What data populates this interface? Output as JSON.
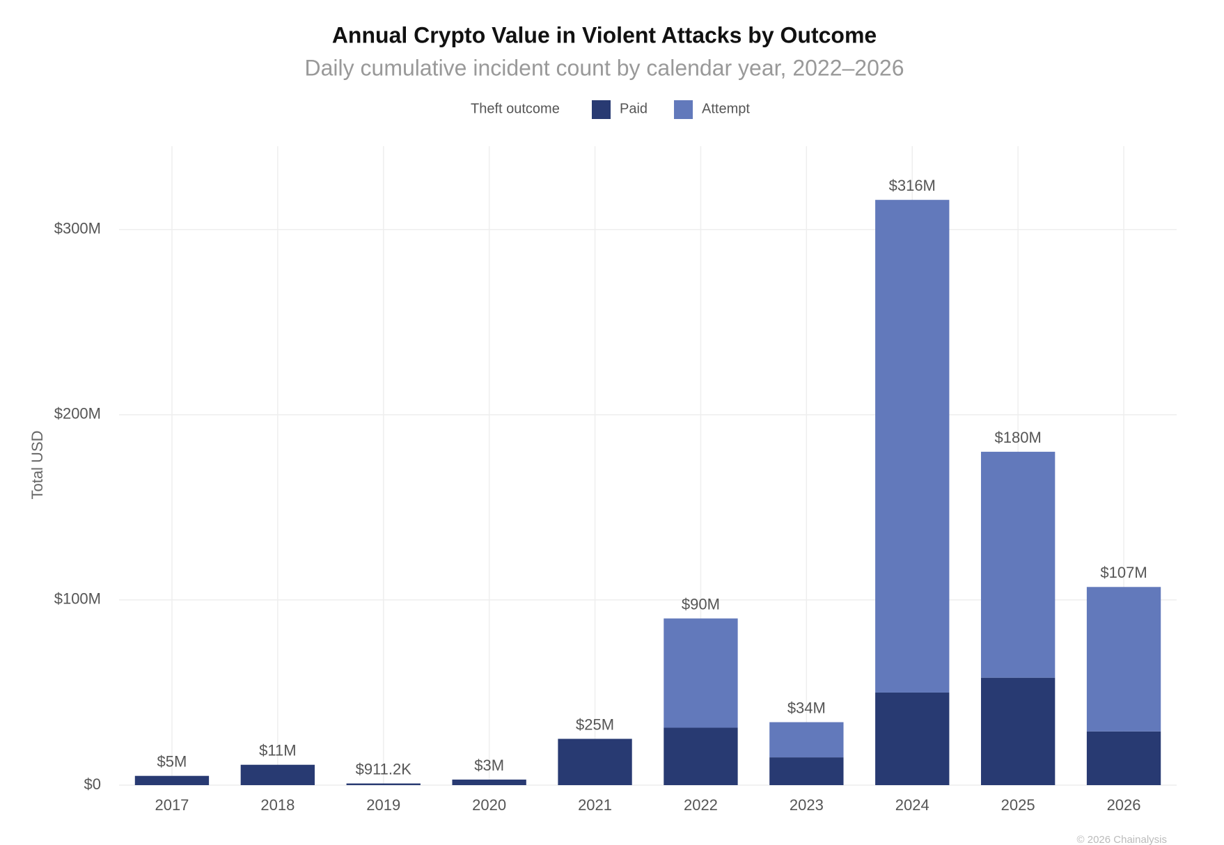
{
  "chart_data": {
    "type": "stacked-bar",
    "title": "Annual Crypto Value in Violent Attacks by Outcome",
    "subtitle": "Daily cumulative incident count by calendar year, 2022–2026",
    "y_label": "Total USD",
    "legend_title": "Theft outcome",
    "legend_position": "top",
    "grid": true,
    "categories": [
      "2017",
      "2018",
      "2019",
      "2020",
      "2021",
      "2022",
      "2023",
      "2024",
      "2025",
      "2026"
    ],
    "series": [
      {
        "name": "Paid",
        "color": "#283a72",
        "values": [
          5,
          11,
          0.9112,
          3,
          25,
          31,
          15,
          50,
          58,
          29
        ]
      },
      {
        "name": "Attempt",
        "color": "#6279bb",
        "values": [
          0,
          0,
          0,
          0,
          0,
          59,
          19,
          266,
          122,
          78
        ]
      }
    ],
    "totals": {
      "values": [
        5,
        11,
        0.9112,
        3,
        25,
        90,
        34,
        316,
        180,
        107
      ],
      "value_labels": [
        "$5M",
        "$11M",
        "$911.2K",
        "$3M",
        "$25M",
        "$90M",
        "$34M",
        "$316M",
        "$180M",
        "$107M"
      ]
    },
    "ylim": [
      0,
      345
    ],
    "yticks": [
      {
        "value": 0,
        "label": "$0"
      },
      {
        "value": 100,
        "label": "$100M"
      },
      {
        "value": 200,
        "label": "$200M"
      },
      {
        "value": 300,
        "label": "$300M"
      }
    ],
    "source": "© 2026 Chainalysis"
  }
}
